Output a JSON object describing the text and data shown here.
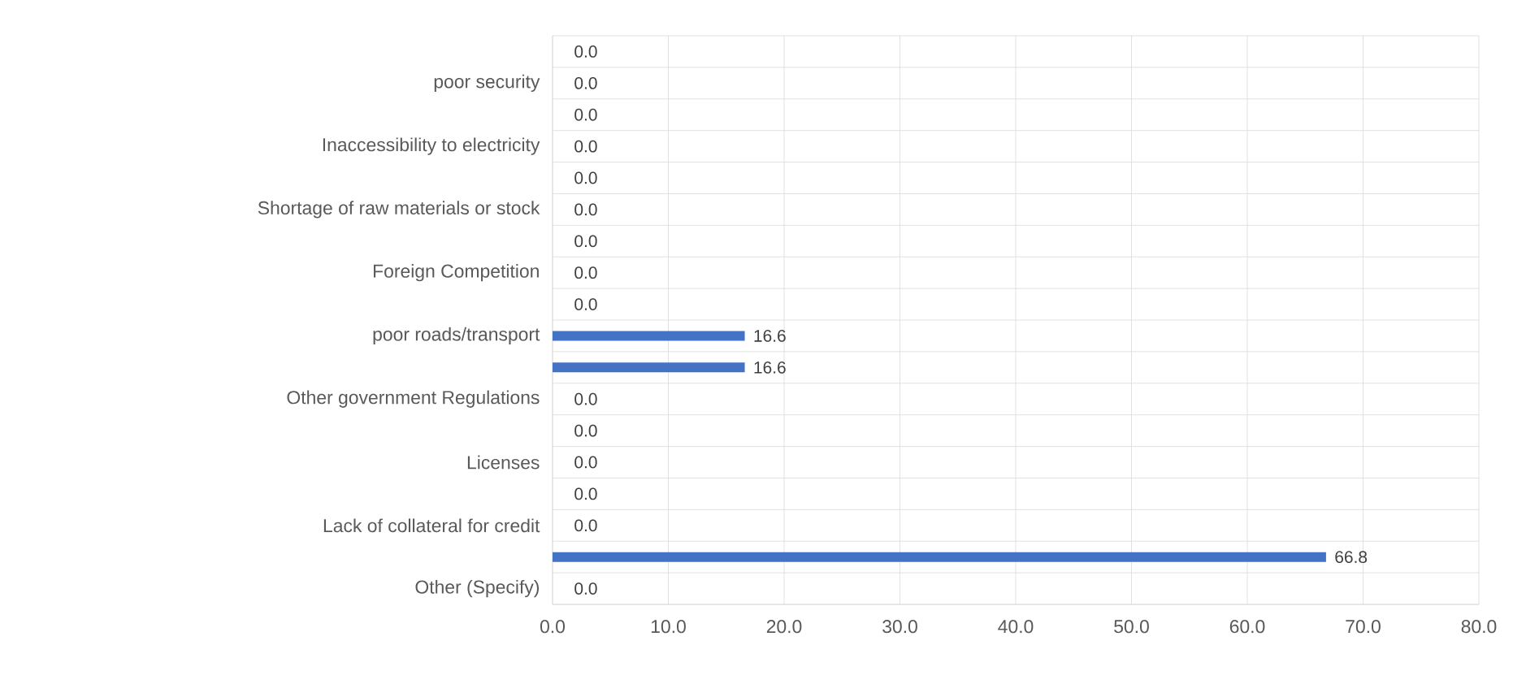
{
  "chart_data": {
    "type": "bar",
    "orientation": "horizontal",
    "categories": [
      null,
      "poor security",
      null,
      "Inaccessibility to electricity",
      null,
      "Shortage of raw materials or stock",
      null,
      "Foreign Competition",
      null,
      "poor roads/transport",
      null,
      "Other government Regulations",
      null,
      "Licenses",
      null,
      "Lack of collateral for credit",
      null,
      "Other (Specify)"
    ],
    "values": [
      0,
      0,
      0,
      0,
      0,
      0,
      0,
      0,
      0,
      16.6,
      16.6,
      0,
      0,
      0,
      0,
      0,
      66.8,
      0
    ],
    "value_labels": [
      "0.0",
      "0.0",
      "0.0",
      "0.0",
      "0.0",
      "0.0",
      "0.0",
      "0.0",
      "0.0",
      "16.6",
      "16.6",
      "0.0",
      "0.0",
      "0.0",
      "0.0",
      "0.0",
      "66.8",
      "0.0"
    ],
    "color": "#4472c4",
    "xlim": [
      0,
      80
    ],
    "xticks": [
      {
        "value": 0,
        "label": "0.0"
      },
      {
        "value": 10,
        "label": "10.0"
      },
      {
        "value": 20,
        "label": "20.0"
      },
      {
        "value": 30,
        "label": "30.0"
      },
      {
        "value": 40,
        "label": "40.0"
      },
      {
        "value": 50,
        "label": "50.0"
      },
      {
        "value": 60,
        "label": "60.0"
      },
      {
        "value": 70,
        "label": "70.0"
      },
      {
        "value": 80,
        "label": "80.0"
      }
    ],
    "grid": true
  }
}
